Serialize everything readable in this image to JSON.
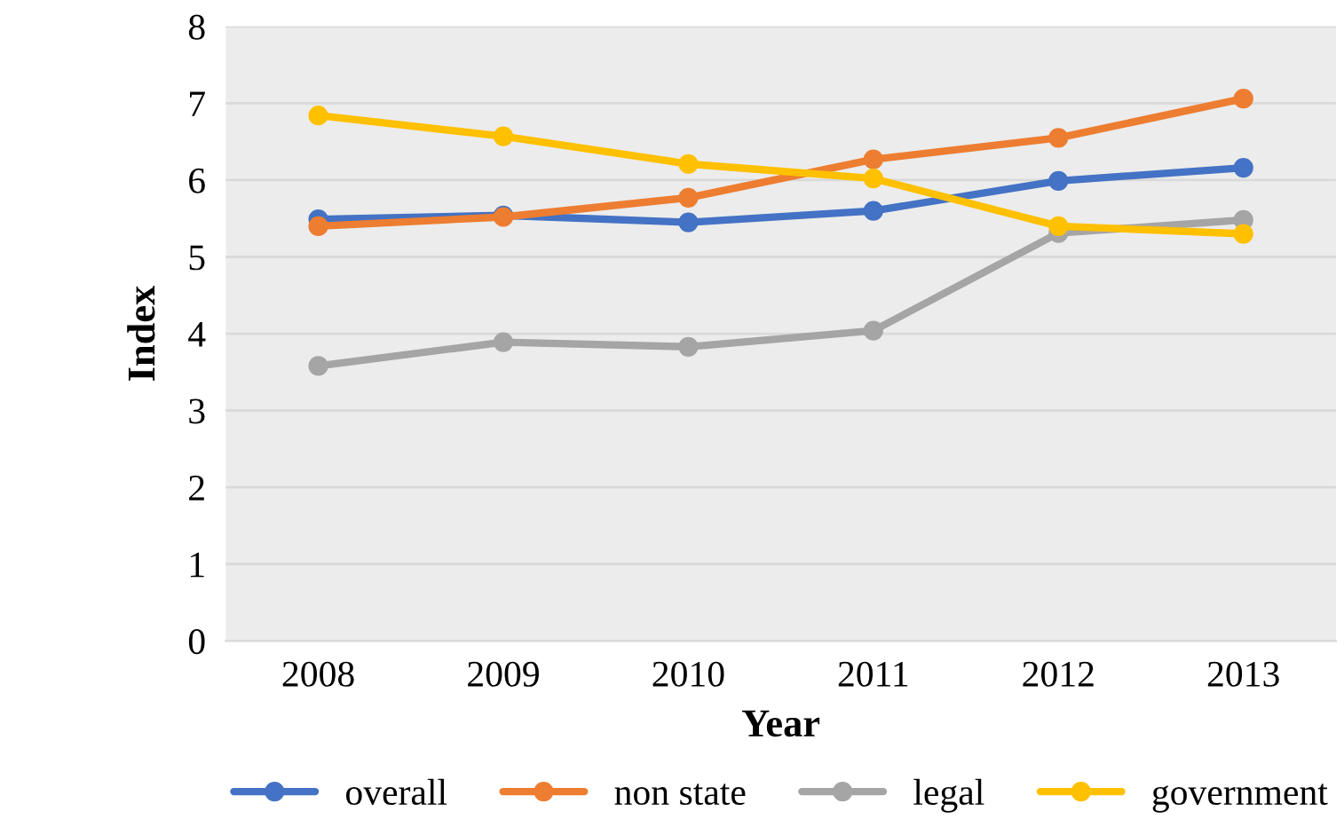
{
  "chart_data": {
    "type": "line",
    "xlabel": "Year",
    "ylabel": "Index",
    "categories": [
      "2008",
      "2009",
      "2010",
      "2011",
      "2012",
      "2013"
    ],
    "series": [
      {
        "name": "overall",
        "color": "#4472c4",
        "values": [
          5.49,
          5.54,
          5.45,
          5.6,
          5.99,
          6.16
        ]
      },
      {
        "name": "non state",
        "color": "#ed7d31",
        "values": [
          5.4,
          5.52,
          5.77,
          6.27,
          6.55,
          7.06
        ]
      },
      {
        "name": "legal",
        "color": "#a5a5a5",
        "values": [
          3.58,
          3.89,
          3.83,
          4.04,
          5.31,
          5.48
        ]
      },
      {
        "name": "government",
        "color": "#ffc000",
        "values": [
          6.84,
          6.57,
          6.21,
          6.02,
          5.4,
          5.3
        ]
      }
    ],
    "ylim": [
      0,
      8
    ],
    "yticks": [
      0,
      1,
      2,
      3,
      4,
      5,
      6,
      7,
      8
    ],
    "grid": "y",
    "legend": "bottom",
    "marker": "circle",
    "line_style": "solid"
  }
}
